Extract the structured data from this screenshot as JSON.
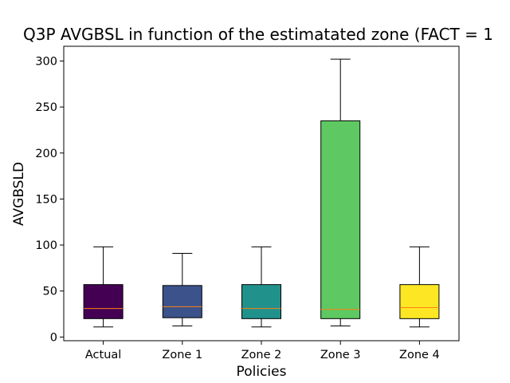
{
  "chart_data": {
    "type": "boxplot",
    "title": "Q3P AVGBSL in function of the estimatated zone (FACT = 1",
    "xlabel": "Policies",
    "ylabel": "AVGBSLD",
    "ylim": [
      -4,
      316
    ],
    "yticks": [
      0,
      50,
      100,
      150,
      200,
      250,
      300
    ],
    "grid": false,
    "categories": [
      "Actual",
      "Zone 1",
      "Zone 2",
      "Zone 3",
      "Zone 4"
    ],
    "boxes": [
      {
        "category": "Actual",
        "whisker_low": 11,
        "q1": 20,
        "median": 31,
        "q3": 57,
        "whisker_high": 98,
        "color": "#440154"
      },
      {
        "category": "Zone 1",
        "whisker_low": 12,
        "q1": 21,
        "median": 33,
        "q3": 56,
        "whisker_high": 91,
        "color": "#3b528b"
      },
      {
        "category": "Zone 2",
        "whisker_low": 11,
        "q1": 20,
        "median": 31,
        "q3": 57,
        "whisker_high": 98,
        "color": "#21918c"
      },
      {
        "category": "Zone 3",
        "whisker_low": 12,
        "q1": 20,
        "median": 30,
        "q3": 235,
        "whisker_high": 302,
        "color": "#5ec962"
      },
      {
        "category": "Zone 4",
        "whisker_low": 11,
        "q1": 20,
        "median": 32,
        "q3": 57,
        "whisker_high": 98,
        "color": "#fde725"
      }
    ],
    "median_color": "#ff7f0e"
  }
}
